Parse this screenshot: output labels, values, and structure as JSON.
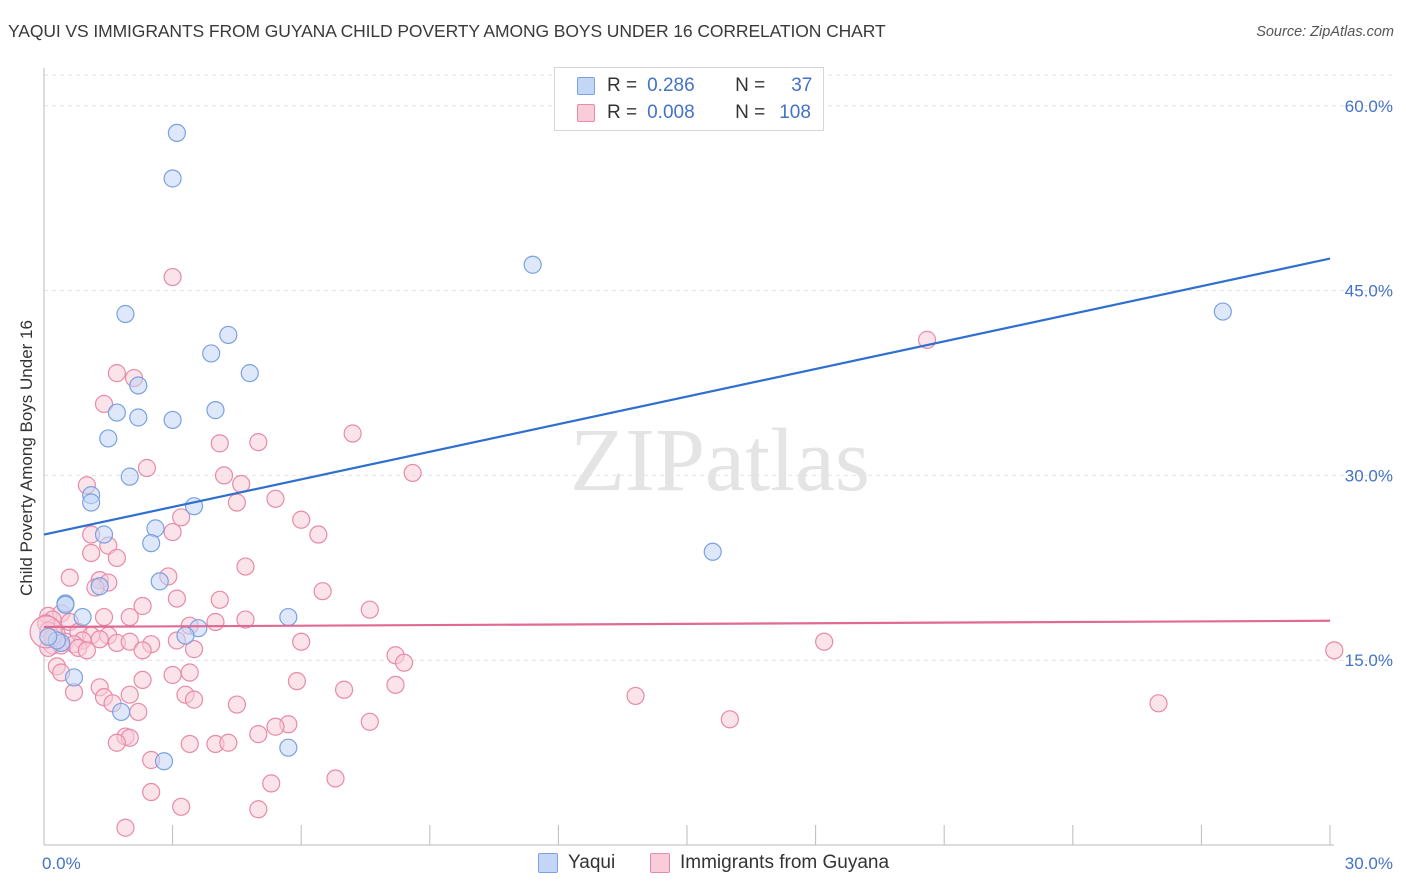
{
  "chart_data": {
    "type": "scatter",
    "title": "YAQUI VS IMMIGRANTS FROM GUYANA CHILD POVERTY AMONG BOYS UNDER 16 CORRELATION CHART",
    "source": "Source: ZipAtlas.com",
    "xlabel": "",
    "ylabel": "Child Poverty Among Boys Under 16",
    "xlim": [
      0,
      30
    ],
    "ylim": [
      0,
      62.5
    ],
    "x_tick_labels": [
      "0.0%",
      "30.0%"
    ],
    "y_ticks": [
      15,
      30,
      45,
      60
    ],
    "y_tick_labels": [
      "15.0%",
      "30.0%",
      "45.0%",
      "60.0%"
    ],
    "watermark": "ZIPatlas",
    "stats": [
      {
        "r_label": "R =",
        "r_value": "0.286",
        "n_label": "N =",
        "n_value": "37"
      },
      {
        "r_label": "R =",
        "r_value": "0.008",
        "n_label": "N =",
        "n_value": "108"
      }
    ],
    "series": [
      {
        "name": "Yaqui",
        "color": "#7aa2e0",
        "fill": "#c3d6f5",
        "trend": {
          "x": [
            0,
            30
          ],
          "y": [
            25.2,
            47.6
          ],
          "color": "#2f6fcf"
        },
        "points": [
          [
            3.1,
            57.8
          ],
          [
            3.0,
            54.1
          ],
          [
            11.4,
            47.1
          ],
          [
            1.9,
            43.1
          ],
          [
            27.5,
            43.3
          ],
          [
            4.3,
            41.4
          ],
          [
            3.9,
            39.9
          ],
          [
            4.8,
            38.3
          ],
          [
            2.2,
            37.3
          ],
          [
            1.7,
            35.1
          ],
          [
            4.0,
            35.3
          ],
          [
            2.2,
            34.7
          ],
          [
            3.0,
            34.5
          ],
          [
            1.5,
            33.0
          ],
          [
            2.0,
            29.9
          ],
          [
            1.1,
            28.4
          ],
          [
            1.1,
            27.8
          ],
          [
            3.5,
            27.5
          ],
          [
            2.6,
            25.7
          ],
          [
            1.4,
            25.2
          ],
          [
            2.5,
            24.5
          ],
          [
            15.6,
            23.8
          ],
          [
            2.7,
            21.4
          ],
          [
            1.3,
            21.0
          ],
          [
            0.5,
            19.6
          ],
          [
            0.5,
            19.5
          ],
          [
            0.9,
            18.5
          ],
          [
            5.7,
            18.5
          ],
          [
            3.6,
            17.6
          ],
          [
            3.3,
            17.0
          ],
          [
            0.4,
            16.4
          ],
          [
            0.3,
            16.6
          ],
          [
            0.1,
            16.9
          ],
          [
            0.7,
            13.6
          ],
          [
            1.8,
            10.8
          ],
          [
            5.7,
            7.9
          ],
          [
            2.8,
            6.8
          ]
        ]
      },
      {
        "name": "Immigrants from Guyana",
        "color": "#e88aa8",
        "fill": "#f8ccd9",
        "trend": {
          "x": [
            0,
            30
          ],
          "y": [
            17.7,
            18.2
          ],
          "color": "#e06a93"
        },
        "points": [
          [
            3.0,
            46.1
          ],
          [
            20.6,
            41.0
          ],
          [
            1.7,
            38.3
          ],
          [
            2.1,
            37.9
          ],
          [
            1.4,
            35.8
          ],
          [
            7.2,
            33.4
          ],
          [
            4.1,
            32.6
          ],
          [
            5.0,
            32.7
          ],
          [
            2.4,
            30.6
          ],
          [
            8.6,
            30.2
          ],
          [
            4.2,
            30.0
          ],
          [
            4.6,
            29.3
          ],
          [
            1.0,
            29.2
          ],
          [
            5.4,
            28.1
          ],
          [
            4.5,
            27.8
          ],
          [
            3.2,
            26.6
          ],
          [
            6.0,
            26.4
          ],
          [
            3.0,
            25.4
          ],
          [
            1.1,
            25.2
          ],
          [
            6.4,
            25.2
          ],
          [
            1.5,
            24.3
          ],
          [
            1.1,
            23.7
          ],
          [
            1.7,
            23.3
          ],
          [
            4.7,
            22.6
          ],
          [
            2.9,
            21.8
          ],
          [
            0.6,
            21.7
          ],
          [
            1.3,
            21.5
          ],
          [
            1.5,
            21.3
          ],
          [
            6.5,
            20.6
          ],
          [
            1.2,
            20.9
          ],
          [
            3.1,
            20.0
          ],
          [
            4.1,
            19.9
          ],
          [
            2.3,
            19.4
          ],
          [
            7.6,
            19.1
          ],
          [
            0.1,
            18.6
          ],
          [
            0.4,
            18.8
          ],
          [
            1.4,
            18.5
          ],
          [
            2.0,
            18.5
          ],
          [
            4.7,
            18.3
          ],
          [
            0.2,
            18.3
          ],
          [
            0.6,
            18.1
          ],
          [
            4.0,
            18.1
          ],
          [
            3.4,
            17.8
          ],
          [
            0.2,
            17.6
          ],
          [
            0.8,
            17.3
          ],
          [
            1.1,
            17.0
          ],
          [
            0.3,
            17.1
          ],
          [
            1.5,
            17.0
          ],
          [
            0.9,
            16.6
          ],
          [
            1.3,
            16.7
          ],
          [
            0.5,
            16.5
          ],
          [
            0.7,
            16.3
          ],
          [
            0.2,
            16.2
          ],
          [
            1.7,
            16.4
          ],
          [
            2.0,
            16.5
          ],
          [
            0.4,
            16.2
          ],
          [
            0.8,
            16.0
          ],
          [
            2.5,
            16.3
          ],
          [
            1.0,
            15.8
          ],
          [
            0.1,
            16.0
          ],
          [
            3.1,
            16.6
          ],
          [
            6.0,
            16.5
          ],
          [
            18.2,
            16.5
          ],
          [
            2.3,
            15.8
          ],
          [
            3.5,
            15.9
          ],
          [
            8.2,
            15.4
          ],
          [
            8.4,
            14.8
          ],
          [
            0.3,
            14.5
          ],
          [
            0.4,
            14.0
          ],
          [
            3.4,
            14.0
          ],
          [
            2.3,
            13.4
          ],
          [
            3.0,
            13.8
          ],
          [
            5.9,
            13.3
          ],
          [
            7.0,
            12.6
          ],
          [
            8.2,
            13.0
          ],
          [
            1.3,
            12.8
          ],
          [
            2.0,
            12.2
          ],
          [
            0.7,
            12.4
          ],
          [
            1.4,
            12.0
          ],
          [
            3.3,
            12.2
          ],
          [
            3.5,
            11.8
          ],
          [
            1.6,
            11.5
          ],
          [
            4.5,
            11.4
          ],
          [
            13.8,
            12.1
          ],
          [
            26.0,
            11.5
          ],
          [
            30.1,
            15.8
          ],
          [
            2.2,
            10.8
          ],
          [
            16.0,
            10.2
          ],
          [
            5.7,
            9.8
          ],
          [
            5.4,
            9.6
          ],
          [
            7.6,
            10.0
          ],
          [
            1.9,
            8.8
          ],
          [
            2.0,
            8.7
          ],
          [
            5.0,
            9.0
          ],
          [
            1.7,
            8.3
          ],
          [
            4.0,
            8.2
          ],
          [
            4.3,
            8.3
          ],
          [
            3.4,
            8.2
          ],
          [
            2.5,
            6.9
          ],
          [
            6.8,
            5.4
          ],
          [
            5.3,
            5.0
          ],
          [
            2.5,
            4.3
          ],
          [
            3.2,
            3.1
          ],
          [
            5.0,
            2.9
          ],
          [
            1.9,
            1.4
          ],
          [
            0.05,
            18.0
          ],
          [
            0.1,
            17.4
          ],
          [
            0.2,
            16.8
          ]
        ]
      }
    ]
  }
}
